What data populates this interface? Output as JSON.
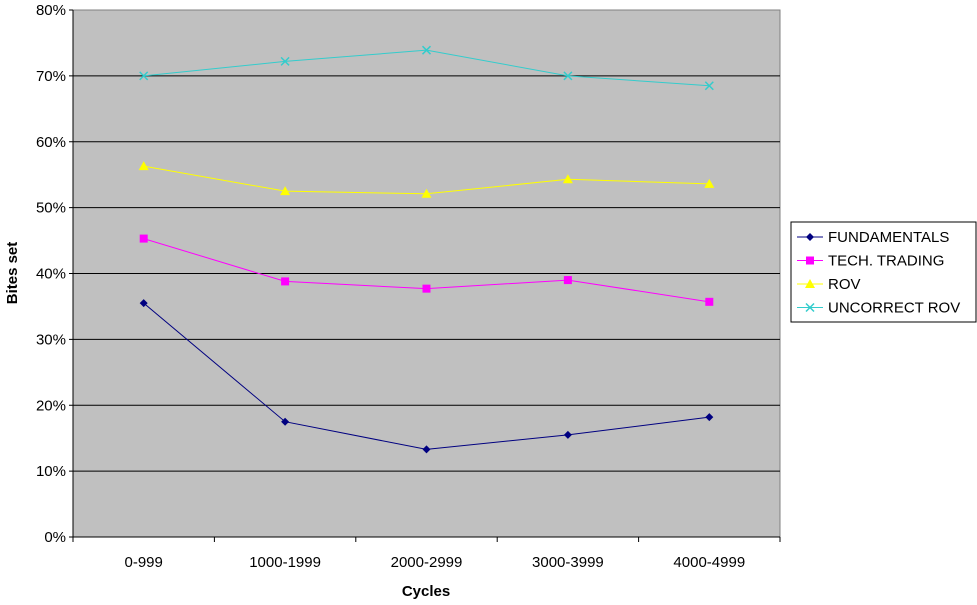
{
  "chart_data": {
    "type": "line",
    "title": "",
    "xlabel": "Cycles",
    "ylabel": "Bites set",
    "categories": [
      "0-999",
      "1000-1999",
      "2000-2999",
      "3000-3999",
      "4000-4999"
    ],
    "ylim": [
      0,
      80
    ],
    "yticks": [
      "0%",
      "10%",
      "20%",
      "30%",
      "40%",
      "50%",
      "60%",
      "70%",
      "80%"
    ],
    "grid": true,
    "legend_position": "right",
    "plot_background": "#C0C0C0",
    "series": [
      {
        "name": "FUNDAMENTALS",
        "color": "#000080",
        "marker": "diamond",
        "values": [
          35.5,
          17.5,
          13.3,
          15.5,
          18.2
        ]
      },
      {
        "name": "TECH. TRADING",
        "color": "#FF00FF",
        "marker": "square",
        "values": [
          45.3,
          38.8,
          37.7,
          39.0,
          35.7
        ]
      },
      {
        "name": "ROV",
        "color": "#FFFF00",
        "marker": "triangle",
        "values": [
          56.3,
          52.5,
          52.1,
          54.3,
          53.6
        ]
      },
      {
        "name": "UNCORRECT ROV",
        "color": "#33CCCC",
        "marker": "x",
        "values": [
          70.0,
          72.2,
          73.9,
          70.0,
          68.5
        ]
      }
    ]
  }
}
